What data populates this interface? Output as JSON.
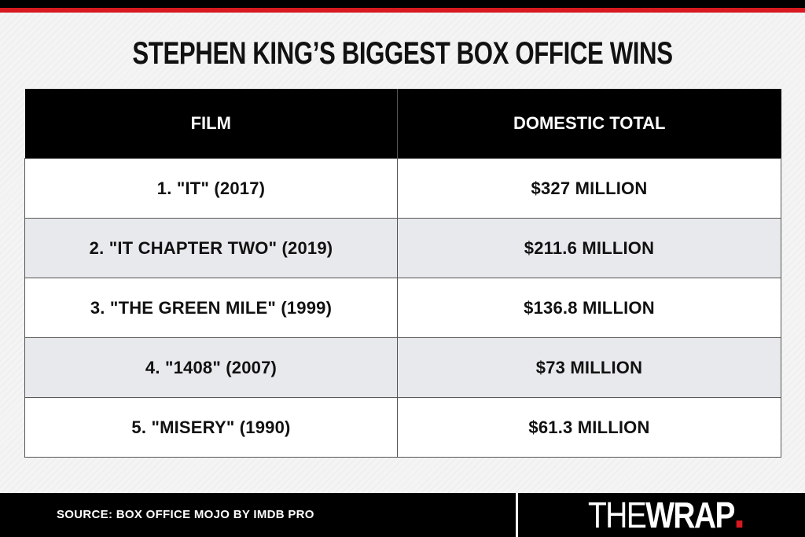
{
  "title": "STEPHEN KING’S BIGGEST BOX OFFICE WINS",
  "chart_data": {
    "type": "table",
    "title": "STEPHEN KING’S BIGGEST BOX OFFICE WINS",
    "columns": [
      "FILM",
      "DOMESTIC TOTAL"
    ],
    "rows": [
      {
        "film": "1. \"IT\" (2017)",
        "total": "$327 MILLION"
      },
      {
        "film": "2. \"IT CHAPTER TWO\" (2019)",
        "total": "$211.6 MILLION"
      },
      {
        "film": "3. \"THE GREEN MILE\" (1999)",
        "total": "$136.8 MILLION"
      },
      {
        "film": "4. \"1408\" (2007)",
        "total": "$73 MILLION"
      },
      {
        "film": "5. \"MISERY\" (1990)",
        "total": "$61.3 MILLION"
      }
    ]
  },
  "footer": {
    "source": "SOURCE: BOX OFFICE MOJO BY IMDB PRO",
    "logo_thin": "THE",
    "logo_bold": "WRAP"
  },
  "colors": {
    "accent": "#d71920",
    "header_bg": "#000000",
    "row_alt": "#e8e9ec"
  }
}
